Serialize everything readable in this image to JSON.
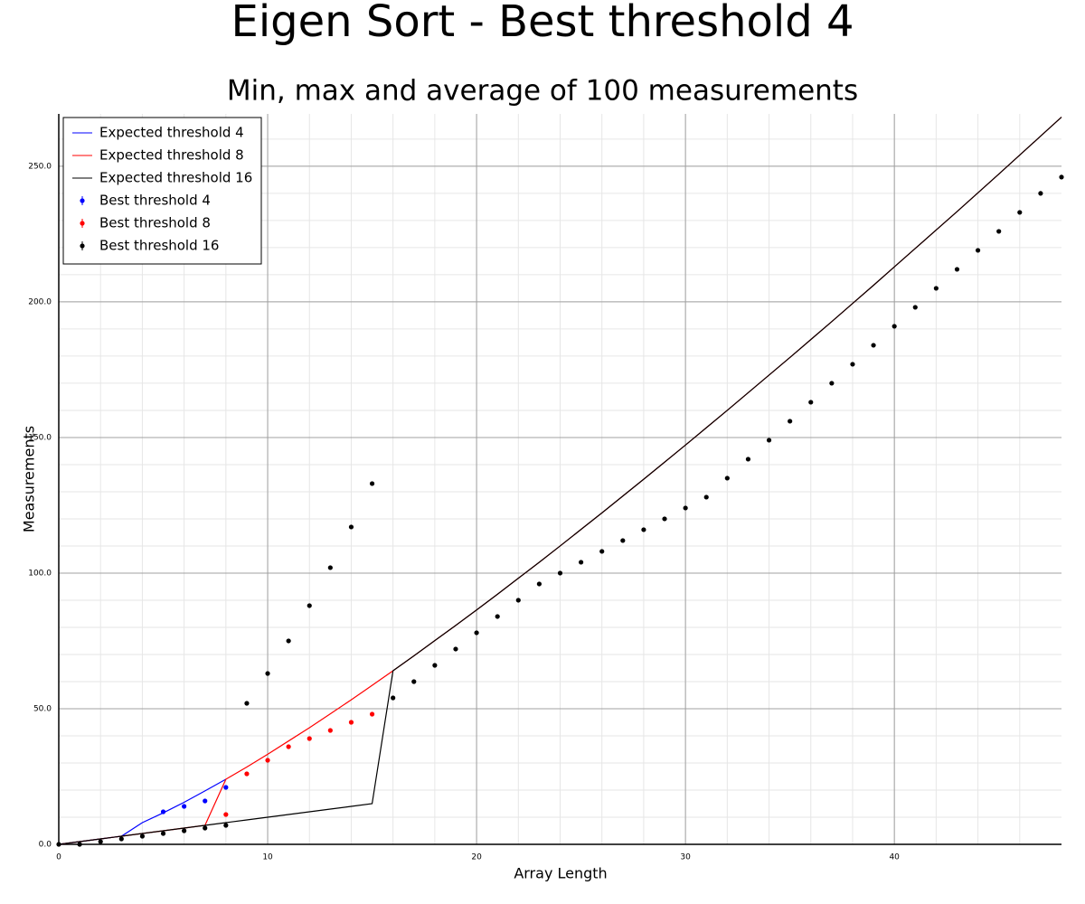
{
  "chart_data": {
    "type": "scatter",
    "title": "Eigen Sort - Best threshold 4",
    "subtitle": "Min, max and average of 100 measurements",
    "x_label": "Array Length",
    "y_label": "Measurements",
    "xlim": [
      0,
      48
    ],
    "ylim": [
      0,
      269.3
    ],
    "xticks": [
      0,
      10,
      20,
      30,
      40
    ],
    "yticks": [
      {
        "value": 0,
        "label": "0.0"
      },
      {
        "value": 50,
        "label": "50.0"
      },
      {
        "value": 100,
        "label": "100.0"
      },
      {
        "value": 150,
        "label": "150.0"
      },
      {
        "value": 200,
        "label": "200.0"
      },
      {
        "value": 250,
        "label": "250.0"
      }
    ],
    "grid": true,
    "legend": "top-left",
    "series": [
      {
        "name": "Expected threshold 4",
        "mode": "line",
        "color": "#0000ff",
        "x": [
          0,
          1,
          2,
          3,
          4,
          5,
          6,
          7,
          8
        ],
        "values": [
          0,
          1,
          2,
          3,
          8,
          11.6,
          15.5,
          19.7,
          24
        ]
      },
      {
        "name": "Expected threshold 8",
        "mode": "line",
        "color": "#ff0000",
        "x": [
          0,
          1,
          2,
          3,
          4,
          5,
          6,
          7,
          8,
          9,
          10,
          11,
          12,
          13,
          14,
          15,
          16,
          17,
          18,
          19,
          20,
          21,
          22,
          23,
          24,
          25,
          26,
          27,
          28,
          29,
          30,
          31,
          32,
          33,
          34,
          35,
          36,
          37,
          38,
          39,
          40,
          41,
          42,
          43,
          44,
          45,
          46,
          47,
          48
        ],
        "values": [
          0,
          1,
          2,
          3,
          4,
          5,
          6,
          7,
          24,
          28.5,
          33.2,
          38.1,
          43,
          48.1,
          53.3,
          58.6,
          64,
          69.5,
          75.1,
          80.7,
          86.4,
          92.2,
          98.1,
          104,
          110,
          116.1,
          122.2,
          128.4,
          134.6,
          140.9,
          147.2,
          153.6,
          160,
          166.5,
          173,
          179.5,
          186.1,
          192.7,
          199.4,
          206.1,
          212.9,
          219.7,
          226.5,
          233.3,
          240.2,
          247.1,
          254.1,
          261.1,
          268.1
        ]
      },
      {
        "name": "Expected threshold 16",
        "mode": "line",
        "color": "#000000",
        "x": [
          0,
          1,
          2,
          3,
          4,
          5,
          6,
          7,
          8,
          9,
          10,
          11,
          12,
          13,
          14,
          15,
          16,
          17,
          18,
          19,
          20,
          21,
          22,
          23,
          24,
          25,
          26,
          27,
          28,
          29,
          30,
          31,
          32,
          33,
          34,
          35,
          36,
          37,
          38,
          39,
          40,
          41,
          42,
          43,
          44,
          45,
          46,
          47,
          48
        ],
        "values": [
          0,
          1,
          2,
          3,
          4,
          5,
          6,
          7,
          8,
          9,
          10,
          11,
          12,
          13,
          14,
          15,
          64,
          69.5,
          75.1,
          80.7,
          86.4,
          92.2,
          98.1,
          104,
          110,
          116.1,
          122.2,
          128.4,
          134.6,
          140.9,
          147.2,
          153.6,
          160,
          166.5,
          173,
          179.5,
          186.1,
          192.7,
          199.4,
          206.1,
          212.9,
          219.7,
          226.5,
          233.3,
          240.2,
          247.1,
          254.1,
          261.1,
          268.1
        ]
      },
      {
        "name": "Best threshold 4",
        "mode": "markers",
        "color": "#0000ff",
        "x": [
          5,
          6,
          7,
          8
        ],
        "values": [
          12,
          14,
          16,
          21
        ]
      },
      {
        "name": "Best threshold 8",
        "mode": "markers",
        "color": "#ff0000",
        "x": [
          8,
          9,
          10,
          11,
          12,
          13,
          14,
          15
        ],
        "values": [
          11,
          26,
          31,
          36,
          39,
          42,
          45,
          48
        ]
      },
      {
        "name": "Best threshold 16",
        "mode": "markers",
        "color": "#000000",
        "x": [
          0,
          1,
          2,
          3,
          4,
          5,
          6,
          7,
          8,
          9,
          10,
          11,
          12,
          13,
          14,
          15,
          16,
          17,
          18,
          19,
          20,
          21,
          22,
          23,
          24,
          25,
          26,
          27,
          28,
          29,
          30,
          31,
          32,
          33,
          34,
          35,
          36,
          37,
          38,
          39,
          40,
          41,
          42,
          43,
          44,
          45,
          46,
          47,
          48
        ],
        "values": [
          0,
          0,
          1,
          2,
          3,
          4,
          5,
          6,
          7,
          52,
          63,
          75,
          88,
          102,
          117,
          133,
          54,
          60,
          66,
          72,
          78,
          84,
          90,
          96,
          100,
          104,
          108,
          112,
          116,
          120,
          124,
          128,
          135,
          142,
          149,
          156,
          163,
          170,
          177,
          184,
          191,
          198,
          205,
          212,
          219,
          226,
          233,
          240,
          246
        ]
      }
    ]
  }
}
